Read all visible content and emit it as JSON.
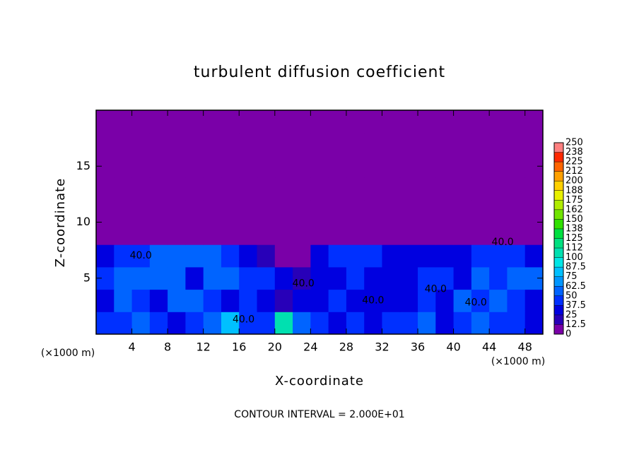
{
  "chart_data": {
    "type": "contour",
    "title": "turbulent diffusion coefficient",
    "x_label": "X-coordinate",
    "y_label": "Z-coordinate",
    "x_unit_left": "(×1000 m)",
    "x_unit_right": "(×1000 m)",
    "footer": "CONTOUR INTERVAL = 2.000E+01",
    "xlim": [
      0,
      50
    ],
    "ylim": [
      0,
      20
    ],
    "xticks": [
      4,
      8,
      12,
      16,
      20,
      24,
      28,
      32,
      36,
      40,
      44,
      48
    ],
    "yticks": [
      5,
      10,
      15
    ],
    "x": [
      1,
      3,
      5,
      7,
      9,
      11,
      13,
      15,
      17,
      19,
      21,
      23,
      25,
      27,
      29,
      31,
      33,
      35,
      37,
      39,
      41,
      43,
      45,
      47,
      49
    ],
    "y": [
      1,
      3,
      5,
      7,
      9,
      11,
      13,
      15,
      17,
      19
    ],
    "z": [
      [
        40,
        45,
        50,
        40,
        35,
        45,
        50,
        75,
        40,
        45,
        100,
        60,
        40,
        35,
        40,
        35,
        40,
        45,
        50,
        35,
        40,
        60,
        45,
        40,
        35
      ],
      [
        35,
        50,
        45,
        30,
        55,
        50,
        45,
        35,
        40,
        30,
        20,
        30,
        30,
        40,
        35,
        30,
        35,
        30,
        40,
        30,
        55,
        45,
        60,
        40,
        30
      ],
      [
        40,
        55,
        60,
        55,
        50,
        35,
        60,
        55,
        45,
        45,
        30,
        20,
        35,
        30,
        40,
        35,
        30,
        35,
        45,
        45,
        30,
        55,
        45,
        50,
        55
      ],
      [
        35,
        40,
        45,
        50,
        55,
        60,
        50,
        40,
        35,
        20,
        10,
        5,
        30,
        40,
        45,
        40,
        35,
        35,
        30,
        25,
        35,
        40,
        45,
        40,
        35
      ],
      [
        0,
        0,
        0,
        0,
        0,
        0,
        0,
        0,
        0,
        0,
        0,
        0,
        0,
        0,
        0,
        0,
        0,
        0,
        0,
        0,
        0,
        0,
        0,
        0,
        0
      ],
      [
        0,
        0,
        0,
        0,
        0,
        0,
        0,
        0,
        0,
        0,
        0,
        0,
        0,
        0,
        0,
        0,
        0,
        0,
        0,
        0,
        0,
        0,
        0,
        0,
        0
      ],
      [
        0,
        0,
        0,
        0,
        0,
        0,
        0,
        0,
        0,
        0,
        0,
        0,
        0,
        0,
        0,
        0,
        0,
        0,
        0,
        0,
        0,
        0,
        0,
        0,
        0
      ],
      [
        0,
        0,
        0,
        0,
        0,
        0,
        0,
        0,
        0,
        0,
        0,
        0,
        0,
        0,
        0,
        0,
        0,
        0,
        0,
        0,
        0,
        0,
        0,
        0,
        0
      ],
      [
        0,
        0,
        0,
        0,
        0,
        0,
        0,
        0,
        0,
        0,
        0,
        0,
        0,
        0,
        0,
        0,
        0,
        0,
        0,
        0,
        0,
        0,
        0,
        0,
        0
      ],
      [
        0,
        0,
        0,
        0,
        0,
        0,
        0,
        0,
        0,
        0,
        0,
        0,
        0,
        0,
        0,
        0,
        0,
        0,
        0,
        0,
        0,
        0,
        0,
        0,
        0
      ]
    ],
    "levels": [
      0,
      12.5,
      25,
      37.5,
      50,
      62.5,
      75,
      87.5,
      100,
      {
        "value": 112.5,
        "label": "112"
      },
      125,
      {
        "value": 137.5,
        "label": "138"
      },
      150,
      {
        "value": 162.5,
        "label": "162"
      },
      175,
      {
        "value": 187.5,
        "label": "188"
      },
      200,
      {
        "value": 212.5,
        "label": "212"
      },
      225,
      {
        "value": 237.5,
        "label": "238"
      },
      250
    ],
    "colors": [
      "#7a00a8",
      "#2800b8",
      "#0000e0",
      "#0030ff",
      "#0064ff",
      "#0096ff",
      "#00c0ff",
      "#00e6e6",
      "#00e0b0",
      "#00e080",
      "#00e040",
      "#30e000",
      "#70e400",
      "#b0ec00",
      "#e8f000",
      "#ffd000",
      "#ffa000",
      "#ff6400",
      "#ff2800",
      "#ff8080"
    ],
    "annotations": [
      {
        "text": "40.0",
        "x": 5,
        "y": 7
      },
      {
        "text": "40.0",
        "x": 16.5,
        "y": 1.3
      },
      {
        "text": "40.0",
        "x": 23.2,
        "y": 4.5
      },
      {
        "text": "40.0",
        "x": 31,
        "y": 3
      },
      {
        "text": "40.0",
        "x": 38,
        "y": 4
      },
      {
        "text": "40.0",
        "x": 45.5,
        "y": 8.2
      },
      {
        "text": "40.0",
        "x": 42.5,
        "y": 2.8
      }
    ]
  }
}
